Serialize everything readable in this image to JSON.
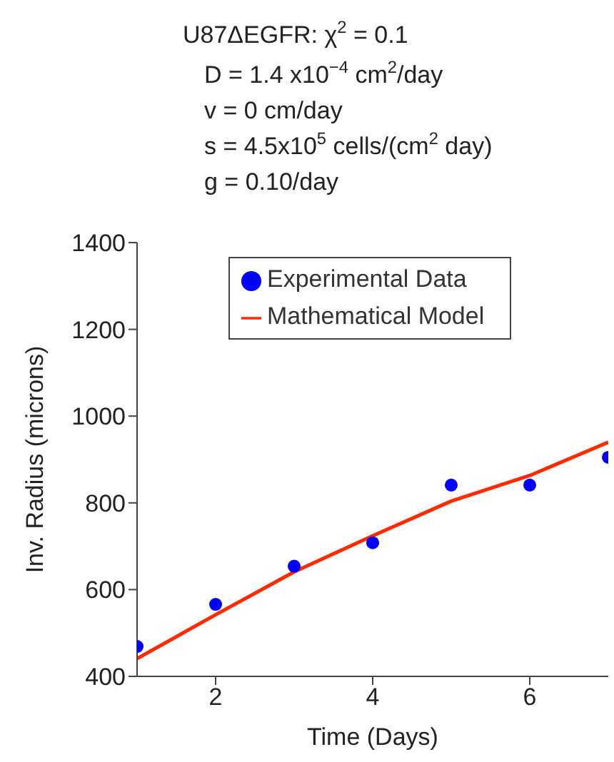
{
  "chart_data": {
    "type": "line",
    "title": "U87ΔEGFR: χ$^{2}$ = 0.1",
    "annotations": [
      "D = 1.4 x10$^{−4}$ cm$^{2}$/day",
      "v  = 0 cm/day",
      "s  = 4.5x10$^{5}$ cells/(cm$^{2}$ day)",
      "g  = 0.10/day"
    ],
    "xlabel": "Time (Days)",
    "ylabel": "Inv. Radius (microns)",
    "xlim": [
      1,
      7
    ],
    "xticks": [
      2,
      4,
      6
    ],
    "ylim": [
      400,
      1400
    ],
    "yticks": [
      400,
      600,
      800,
      1000,
      1200,
      1400
    ],
    "legend": "top right",
    "grid": false,
    "series": [
      {
        "name": "Experimental Data",
        "type": "scatter",
        "marker": "circle",
        "color": "#0000ff",
        "x": [
          1,
          2,
          3,
          4,
          5,
          6,
          7
        ],
        "values": [
          469,
          566,
          654,
          708,
          841,
          841,
          905
        ]
      },
      {
        "name": "Mathematical Model",
        "marker": "none",
        "line_style": "solid",
        "color": "#ff2a00",
        "x": [
          1,
          2,
          3,
          4,
          5,
          6,
          7
        ],
        "values": [
          441,
          542,
          641,
          724,
          804,
          863,
          940
        ]
      }
    ]
  }
}
